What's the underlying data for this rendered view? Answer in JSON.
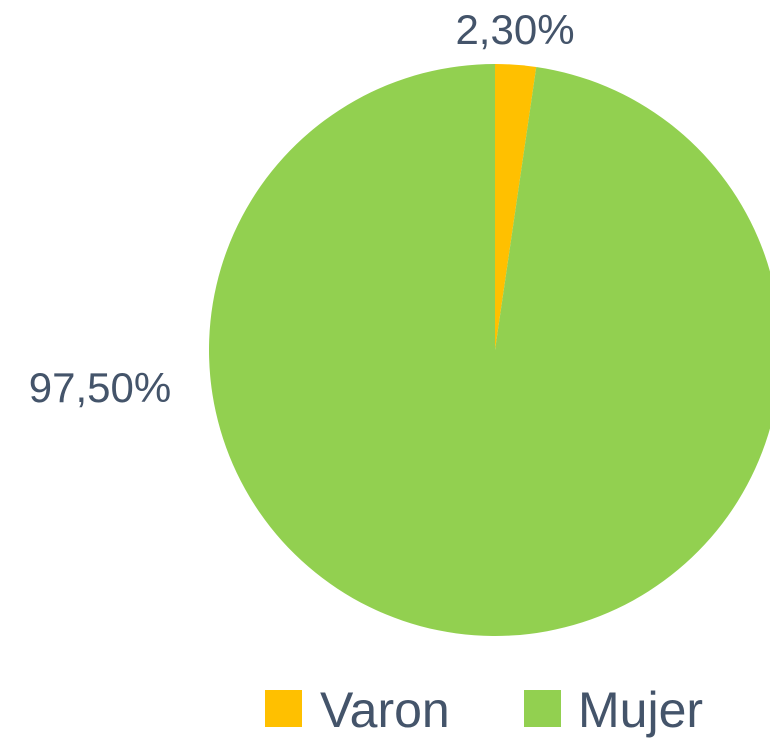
{
  "chart_data": {
    "type": "pie",
    "categories": [
      "Varon",
      "Mujer"
    ],
    "values": [
      2.3,
      97.5
    ],
    "value_labels": [
      "2,30%",
      "97,50%"
    ],
    "colors": [
      "#FFC000",
      "#92D050"
    ]
  }
}
